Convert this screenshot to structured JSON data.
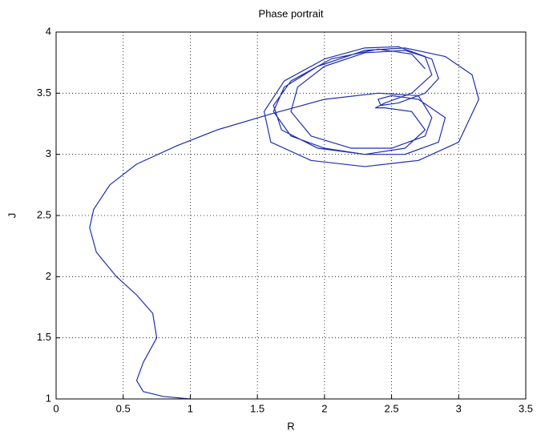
{
  "chart_data": {
    "type": "line",
    "title": "Phase portrait",
    "x_label": "R",
    "y_label": "J",
    "xlim": [
      0,
      3.5
    ],
    "ylim": [
      1,
      4
    ],
    "xticks": [
      0,
      0.5,
      1,
      1.5,
      2,
      2.5,
      3,
      3.5
    ],
    "yticks": [
      1,
      1.5,
      2,
      2.5,
      3,
      3.5,
      4
    ],
    "grid": true,
    "series": [
      {
        "color": "#1f2fb0",
        "x": [
          1,
          0.8,
          0.65,
          0.6,
          0.65,
          0.75,
          0.72,
          0.6,
          0.45,
          0.3,
          0.25,
          0.28,
          0.4,
          0.6,
          0.9,
          1.2,
          1.6,
          2.0,
          2.4,
          2.7,
          2.8,
          2.75,
          2.5,
          2.2,
          1.9,
          1.75,
          1.8,
          2.0,
          2.3,
          2.6,
          2.8,
          2.85,
          2.75,
          2.55,
          2.42,
          2.4,
          2.5,
          2.7,
          2.9,
          2.85,
          2.6,
          2.3,
          2.0,
          1.75,
          1.62,
          1.7,
          1.95,
          2.3,
          2.6,
          2.9,
          3.1,
          3.15,
          3.0,
          2.7,
          2.3,
          1.9,
          1.6,
          1.55,
          1.7,
          2.0,
          2.3,
          2.55,
          2.75,
          2.8,
          2.65,
          2.45,
          2.38,
          2.45,
          2.65,
          2.75,
          2.6,
          2.3,
          1.95,
          1.68,
          1.62,
          1.75,
          2.05,
          2.4,
          2.65,
          2.75
        ],
        "values": [
          1,
          1.02,
          1.06,
          1.15,
          1.3,
          1.5,
          1.7,
          1.85,
          2.0,
          2.2,
          2.4,
          2.55,
          2.75,
          2.92,
          3.07,
          3.2,
          3.33,
          3.45,
          3.5,
          3.48,
          3.3,
          3.15,
          3.05,
          3.05,
          3.15,
          3.35,
          3.55,
          3.72,
          3.83,
          3.85,
          3.78,
          3.62,
          3.5,
          3.42,
          3.4,
          3.45,
          3.48,
          3.45,
          3.3,
          3.1,
          3.0,
          3.0,
          3.05,
          3.15,
          3.35,
          3.55,
          3.72,
          3.85,
          3.87,
          3.8,
          3.65,
          3.45,
          3.1,
          2.95,
          2.9,
          2.95,
          3.1,
          3.35,
          3.6,
          3.78,
          3.87,
          3.88,
          3.8,
          3.65,
          3.5,
          3.42,
          3.38,
          3.38,
          3.35,
          3.2,
          3.05,
          3.0,
          3.05,
          3.2,
          3.4,
          3.6,
          3.78,
          3.86,
          3.82,
          3.7
        ]
      }
    ]
  }
}
